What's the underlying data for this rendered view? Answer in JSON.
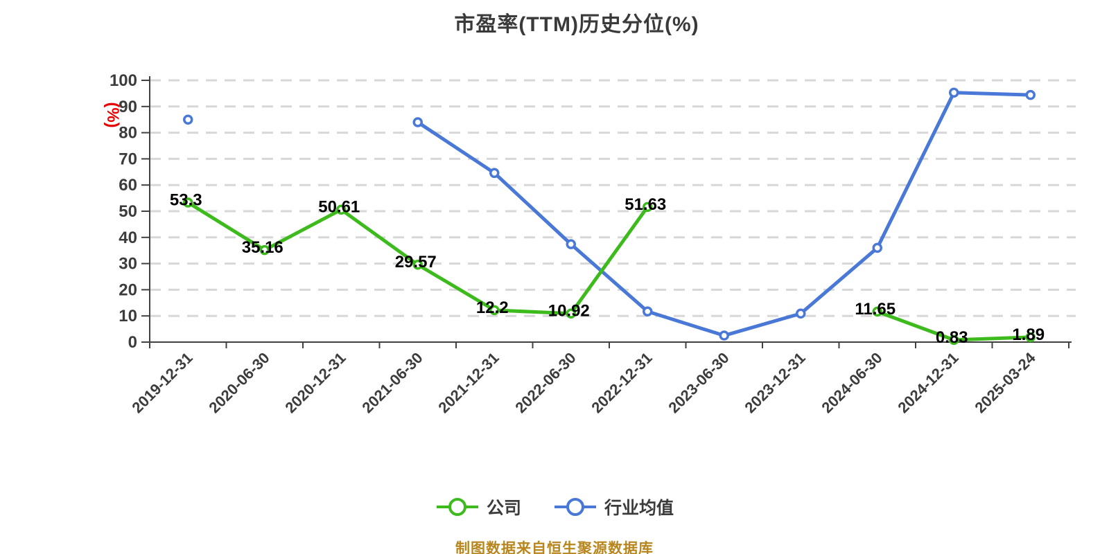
{
  "title": "市盈率(TTM)历史分位(%)",
  "caption": "制图数据来自恒生聚源数据库",
  "y_axis": {
    "unit_label": "(%)",
    "unit_color": "#e60000",
    "tick_labels": [
      "0",
      "10",
      "20",
      "30",
      "40",
      "50",
      "60",
      "70",
      "80",
      "90",
      "100"
    ]
  },
  "legend": {
    "items": [
      {
        "label": "公司",
        "color": "#3dbb1c"
      },
      {
        "label": "行业均值",
        "color": "#4978d7"
      }
    ]
  },
  "chart_data": {
    "type": "line",
    "title": "市盈率(TTM)历史分位(%)",
    "ylabel": "(%)",
    "ylim": [
      0,
      100
    ],
    "grid": "dashed horizontal gridlines every 10",
    "legend_position": "bottom",
    "categories": [
      "2019-12-31",
      "2020-06-30",
      "2020-12-31",
      "2021-06-30",
      "2021-12-31",
      "2022-06-30",
      "2022-12-31",
      "2023-06-30",
      "2023-12-31",
      "2024-06-30",
      "2024-12-31",
      "2025-03-24"
    ],
    "series": [
      {
        "name": "公司",
        "color": "#3dbb1c",
        "values": [
          53.3,
          35.16,
          50.61,
          29.57,
          12.2,
          10.92,
          51.63,
          null,
          null,
          11.65,
          0.83,
          1.89
        ],
        "data_labels": [
          "53.3",
          "35.16",
          "50.61",
          "29.57",
          "12.2",
          "10.92",
          "51.63",
          null,
          null,
          "11.65",
          "0.83",
          "1.89"
        ]
      },
      {
        "name": "行业均值",
        "color": "#4978d7",
        "values": [
          85,
          null,
          null,
          84,
          64.6,
          37.4,
          11.7,
          2.5,
          10.9,
          36,
          95.3,
          94.4
        ],
        "data_labels": [
          null,
          null,
          null,
          null,
          null,
          null,
          null,
          null,
          null,
          null,
          null,
          null
        ]
      }
    ],
    "style": {
      "gridline_color": "#d7d7d7",
      "axis_color": "#404040",
      "data_label_color": "#000000",
      "point_fill": "#ffffff"
    }
  }
}
